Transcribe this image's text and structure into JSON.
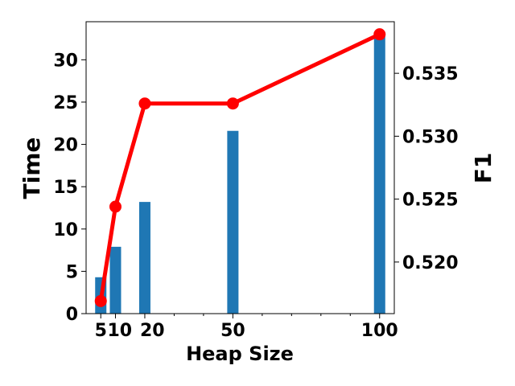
{
  "chart_data": {
    "type": "bar",
    "x_categories": [
      "5",
      "10",
      "20",
      "50",
      "100"
    ],
    "x_values": [
      5,
      10,
      20,
      50,
      100
    ],
    "xlabel": "Heap Size",
    "ylabel_left": "Time",
    "ylabel_right": "F1",
    "xlim": [
      0,
      105
    ],
    "ylim_left": [
      0,
      34.5
    ],
    "ylim_right": [
      0.5159,
      0.5391
    ],
    "left_ticks": [
      0,
      5,
      10,
      15,
      20,
      25,
      30
    ],
    "right_ticks": [
      0.52,
      0.525,
      0.53,
      0.535
    ],
    "right_tick_labels": [
      "0.520",
      "0.525",
      "0.530",
      "0.535"
    ],
    "series": [
      {
        "name": "Time",
        "axis": "left",
        "kind": "bar",
        "x": [
          5,
          10,
          20,
          50,
          100
        ],
        "values": [
          4.3,
          7.9,
          13.2,
          21.6,
          32.9
        ]
      },
      {
        "name": "F1",
        "axis": "right",
        "kind": "line",
        "x": [
          5,
          10,
          20,
          50,
          100
        ],
        "values": [
          0.5169,
          0.5244,
          0.5326,
          0.5326,
          0.5381
        ]
      }
    ],
    "colors": {
      "bar": "#1f77b4",
      "line": "#ff0000",
      "ylabel_left": "#0000ff",
      "ylabel_right": "#ff0000"
    },
    "grid": false,
    "legend": "none"
  }
}
